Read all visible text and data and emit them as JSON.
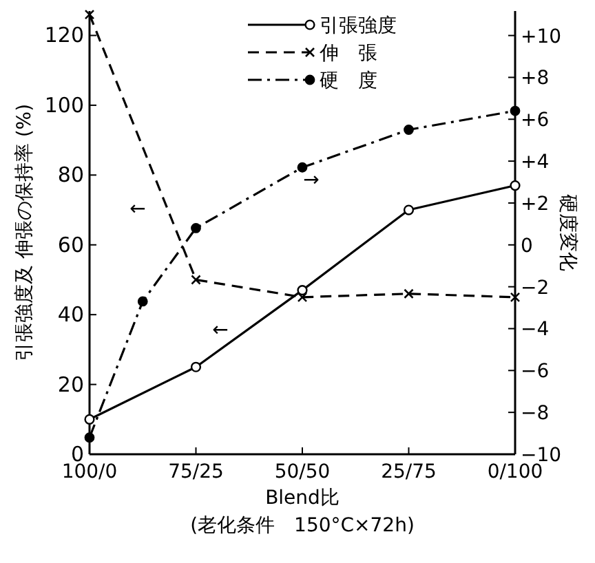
{
  "chart_data": {
    "type": "line",
    "xlabel": "Blend比",
    "ylabel": "引張強度及 伸張の保持率 (%)",
    "y2label": "硬度変化",
    "categories": [
      "100/0",
      null,
      "75/25",
      null,
      "50/50",
      null,
      "25/75",
      null,
      "0/100"
    ],
    "ylim": [
      0,
      127
    ],
    "yticks": [
      0,
      20,
      40,
      60,
      80,
      100,
      120
    ],
    "y2lim": [
      -10,
      11.17
    ],
    "y2ticks": [
      {
        "value": -10,
        "label": "−10"
      },
      {
        "value": -8,
        "label": "−8"
      },
      {
        "value": -6,
        "label": "−6"
      },
      {
        "value": -4,
        "label": "−4"
      },
      {
        "value": -2,
        "label": "−2"
      },
      0,
      {
        "value": 2,
        "label": "+2"
      },
      {
        "value": 4,
        "label": "+4"
      },
      {
        "value": 6,
        "label": "+6"
      },
      {
        "value": 8,
        "label": "+8"
      },
      {
        "value": 10,
        "label": "+10"
      }
    ],
    "series": [
      {
        "name": "引張強度",
        "color": "#000000",
        "marker": "circle",
        "line_style": "solid",
        "values": [
          10,
          null,
          25,
          null,
          47,
          null,
          70,
          null,
          77
        ]
      },
      {
        "name": "伸　張",
        "color": "#000000",
        "marker": "cross",
        "line_style": "dashed",
        "values": [
          126,
          null,
          50,
          null,
          45,
          null,
          46,
          null,
          45
        ]
      },
      {
        "name": "硬　度",
        "color": "#000000",
        "marker": "circle_filled",
        "line_style": "dashdot",
        "axis": "y2",
        "values": [
          -9.2,
          -2.7,
          0.8,
          null,
          3.7,
          null,
          5.5,
          null,
          6.4
        ]
      }
    ],
    "legend": "top right",
    "grid": false,
    "annotations": [
      "←",
      "←",
      "→",
      "(老化条件　150°C×72h)"
    ]
  }
}
